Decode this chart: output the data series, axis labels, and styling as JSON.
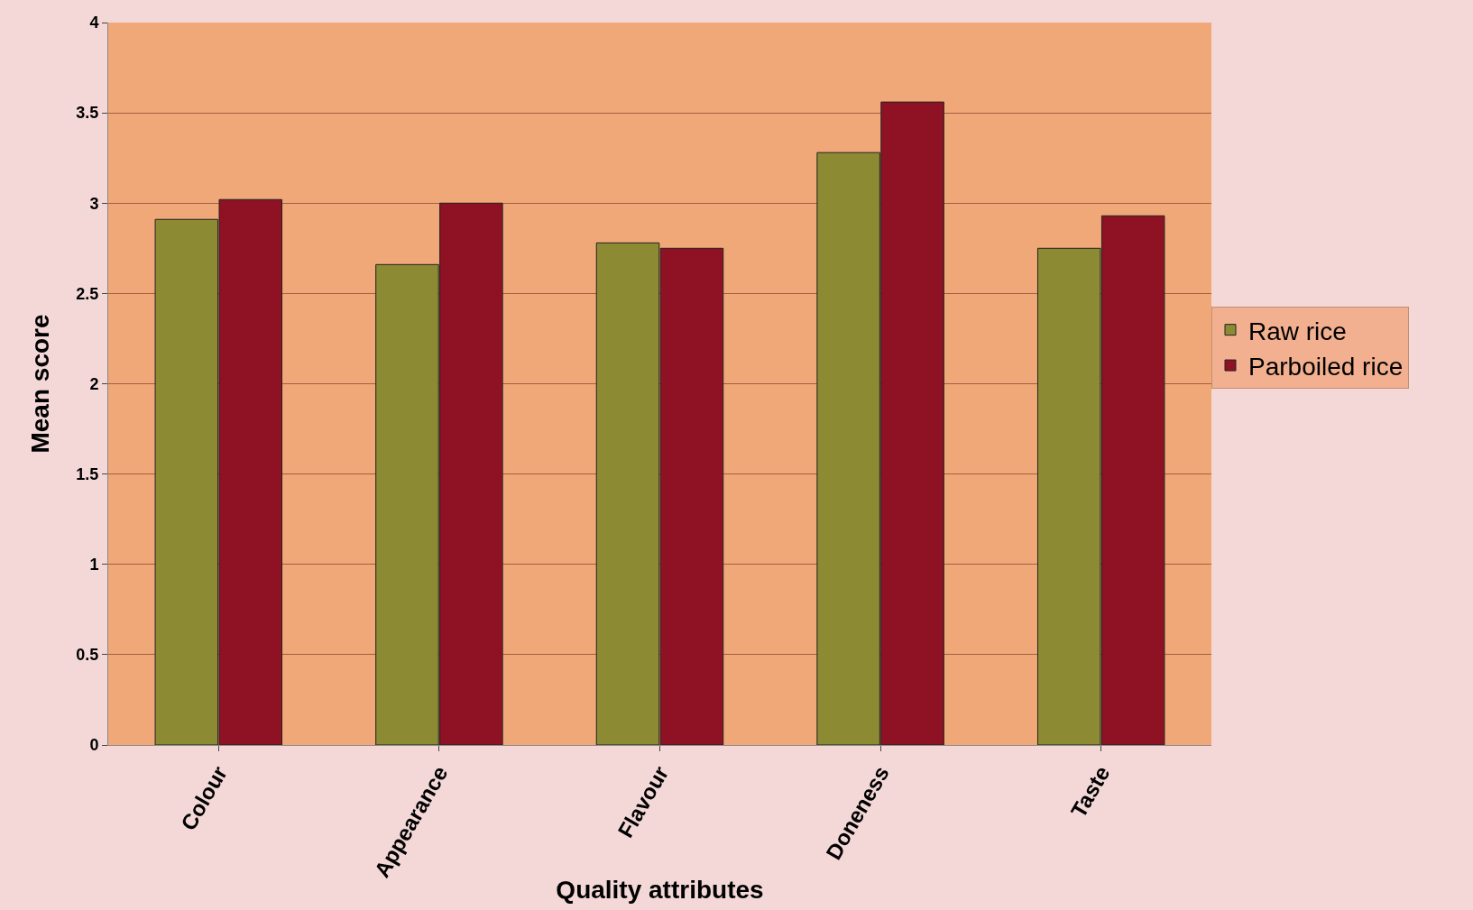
{
  "chart_data": {
    "type": "bar",
    "xlabel": "Quality attributes",
    "ylabel": "Mean score",
    "categories": [
      "Colour",
      "Appearance",
      "Flavour",
      "Doneness",
      "Taste"
    ],
    "series": [
      {
        "name": "Raw rice",
        "color": "#8c8a32",
        "values": [
          2.91,
          2.66,
          2.78,
          3.28,
          2.75
        ]
      },
      {
        "name": "Parboiled rice",
        "color": "#8e1224",
        "values": [
          3.02,
          3.0,
          2.75,
          3.56,
          2.93
        ]
      }
    ],
    "ylim": [
      0,
      4
    ],
    "yticks": [
      0,
      0.5,
      1,
      1.5,
      2,
      2.5,
      3,
      3.5,
      4
    ],
    "grid": "y",
    "legend": "right"
  }
}
